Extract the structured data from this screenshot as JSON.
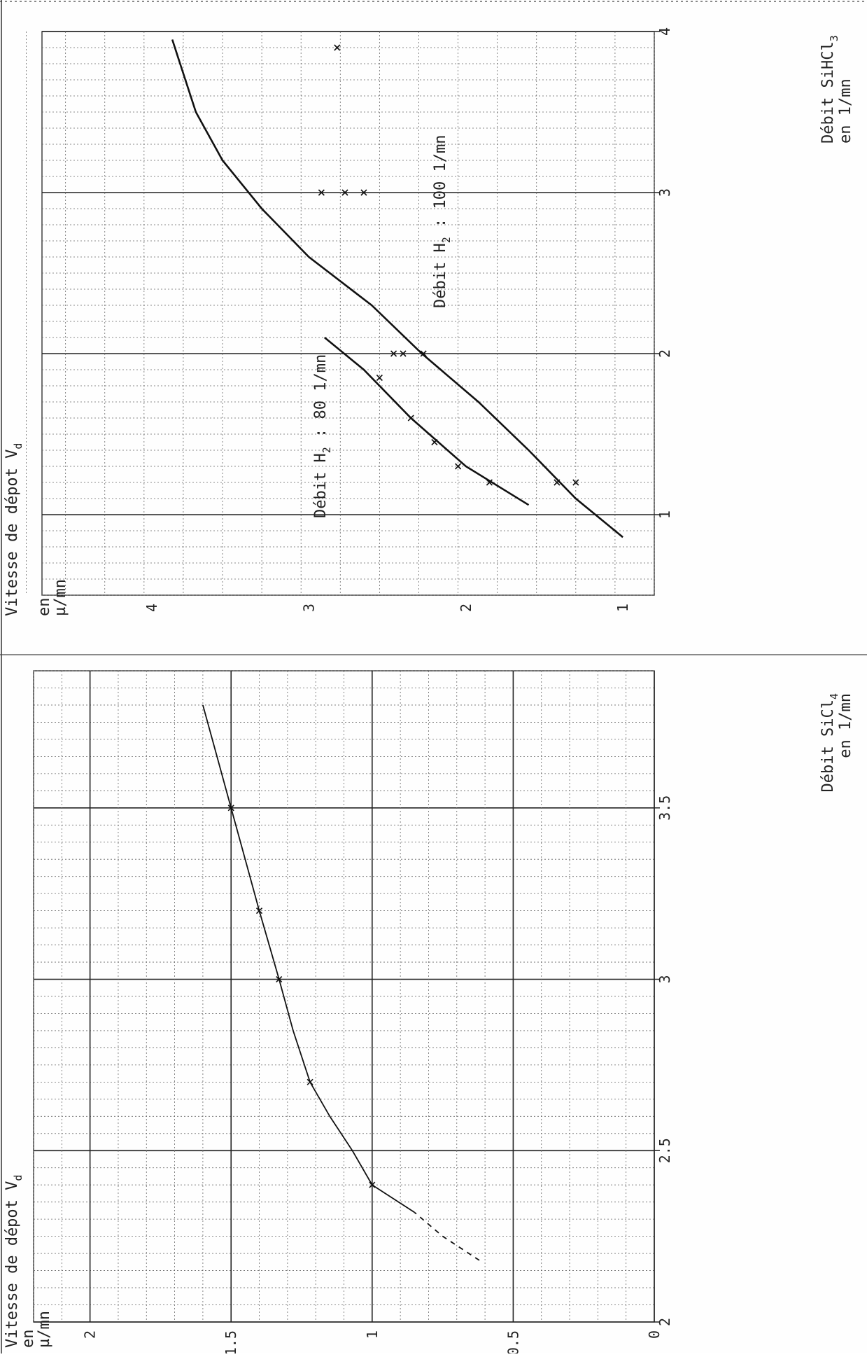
{
  "chart_data": [
    {
      "type": "line",
      "axis_orientation": "rotated 90 degrees counter-clockwise",
      "xlabel_line1": "Débit SiCl",
      "xlabel_sub": "4",
      "xlabel_line2": "en 1/mn",
      "ylabel_line1": "Vitesse de dépot V",
      "ylabel_sub": "d",
      "ylabel_line2": "en",
      "ylabel_line3": "µ/mn",
      "xlim": [
        2,
        3.9
      ],
      "ylim": [
        0,
        2.2
      ],
      "x_ticks": [
        {
          "value": 2,
          "label": "2"
        },
        {
          "value": 2.5,
          "label": "2.5"
        },
        {
          "value": 3,
          "label": "3"
        },
        {
          "value": 3.5,
          "label": "3.5"
        }
      ],
      "y_ticks": [
        {
          "value": 0,
          "label": "0"
        },
        {
          "value": 0.5,
          "label": "0.5"
        },
        {
          "value": 1,
          "label": "1"
        },
        {
          "value": 1.5,
          "label": "1.5"
        },
        {
          "value": 2,
          "label": "2"
        }
      ],
      "grid": true,
      "series": [
        {
          "points": [
            [
              2.4,
              1.0
            ],
            [
              2.7,
              1.22
            ],
            [
              3.0,
              1.33
            ],
            [
              3.2,
              1.4
            ],
            [
              3.5,
              1.5
            ]
          ],
          "curve": [
            [
              2.18,
              0.62
            ],
            [
              2.25,
              0.75
            ],
            [
              2.32,
              0.85
            ],
            [
              2.4,
              1.0
            ],
            [
              2.5,
              1.07
            ],
            [
              2.6,
              1.15
            ],
            [
              2.7,
              1.22
            ],
            [
              2.85,
              1.28
            ],
            [
              3.0,
              1.33
            ],
            [
              3.2,
              1.4
            ],
            [
              3.35,
              1.45
            ],
            [
              3.5,
              1.5
            ],
            [
              3.65,
              1.55
            ],
            [
              3.8,
              1.6
            ]
          ],
          "dashed_until_x": 2.32
        }
      ]
    },
    {
      "type": "line",
      "axis_orientation": "rotated 90 degrees counter-clockwise",
      "xlabel_line1": "Débit SiHCl",
      "xlabel_sub": "3",
      "xlabel_line2": "en 1/mn",
      "ylabel_line1": "Vitesse de dépot V",
      "ylabel_sub": "d",
      "ylabel_line2": "en",
      "ylabel_line3": "µ/mn",
      "xlim": [
        0.5,
        4
      ],
      "ylim": [
        0.8,
        4.7
      ],
      "x_ticks": [
        {
          "value": 1,
          "label": "1"
        },
        {
          "value": 2,
          "label": "2"
        },
        {
          "value": 3,
          "label": "3"
        },
        {
          "value": 4,
          "label": "4"
        }
      ],
      "y_ticks": [
        {
          "value": 1,
          "label": "1"
        },
        {
          "value": 2,
          "label": "2"
        },
        {
          "value": 3,
          "label": "3"
        },
        {
          "value": 4,
          "label": "4"
        }
      ],
      "grid": true,
      "series": [
        {
          "name": "Débit H₂ : 80 1/mn",
          "label_main": "Débit H",
          "label_sub": "2",
          "label_rest": " : 80 1/mn",
          "points": [
            [
              1.2,
              1.85
            ],
            [
              1.3,
              2.05
            ],
            [
              1.45,
              2.2
            ],
            [
              1.6,
              2.35
            ],
            [
              1.85,
              2.55
            ]
          ],
          "curve": [
            [
              1.06,
              1.6
            ],
            [
              1.3,
              2.0
            ],
            [
              1.6,
              2.35
            ],
            [
              1.9,
              2.65
            ],
            [
              2.1,
              2.9
            ]
          ]
        },
        {
          "name": "Débit H₂ : 100 1/mn",
          "label_main": "Débit H",
          "label_sub": "2",
          "label_rest": " : 100 1/mn",
          "points": [
            [
              1.2,
              1.3
            ],
            [
              1.2,
              1.42
            ],
            [
              2.0,
              2.27
            ],
            [
              2.0,
              2.4
            ],
            [
              2.0,
              2.46
            ],
            [
              3.0,
              2.65
            ],
            [
              3.0,
              2.77
            ],
            [
              3.0,
              2.92
            ],
            [
              3.9,
              2.82
            ]
          ],
          "curve": [
            [
              0.86,
              1.0
            ],
            [
              1.1,
              1.3
            ],
            [
              1.4,
              1.6
            ],
            [
              1.7,
              1.92
            ],
            [
              2.0,
              2.28
            ],
            [
              2.3,
              2.6
            ],
            [
              2.6,
              3.0
            ],
            [
              2.9,
              3.3
            ],
            [
              3.2,
              3.55
            ],
            [
              3.5,
              3.72
            ],
            [
              3.8,
              3.82
            ],
            [
              3.95,
              3.87
            ]
          ]
        }
      ]
    }
  ]
}
